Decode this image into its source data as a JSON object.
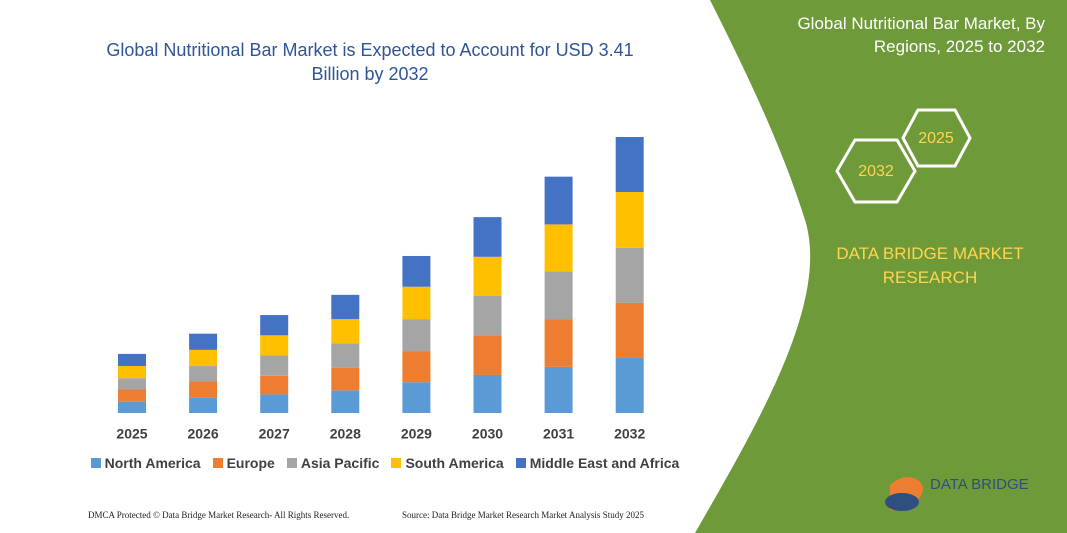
{
  "chart_data": {
    "type": "bar",
    "stacked": true,
    "title": "Global Nutritional Bar Market is Expected to Account for USD 3.41 Billion by 2032",
    "categories": [
      "2025",
      "2026",
      "2027",
      "2028",
      "2029",
      "2030",
      "2031",
      "2032"
    ],
    "series": [
      {
        "name": "North America",
        "color": "#5b9bd5",
        "values": [
          0.14,
          0.19,
          0.23,
          0.28,
          0.38,
          0.47,
          0.57,
          0.68
        ]
      },
      {
        "name": "Europe",
        "color": "#ed7d31",
        "values": [
          0.15,
          0.2,
          0.23,
          0.28,
          0.38,
          0.49,
          0.59,
          0.68
        ]
      },
      {
        "name": "Asia Pacific",
        "color": "#a5a5a5",
        "values": [
          0.14,
          0.19,
          0.25,
          0.3,
          0.4,
          0.49,
          0.59,
          0.68
        ]
      },
      {
        "name": "South America",
        "color": "#ffc000",
        "values": [
          0.15,
          0.2,
          0.25,
          0.3,
          0.4,
          0.48,
          0.58,
          0.69
        ]
      },
      {
        "name": "Middle East and Africa",
        "color": "#4472c4",
        "values": [
          0.15,
          0.2,
          0.25,
          0.3,
          0.38,
          0.49,
          0.59,
          0.68
        ]
      }
    ]
  },
  "panel": {
    "title": "Global Nutritional Bar Market, By Regions, 2025 to 2032",
    "hex_front": "2032",
    "hex_back": "2025",
    "brand": "DATA BRIDGE MARKET RESEARCH"
  },
  "footer": {
    "left": "DMCA Protected © Data Bridge Market Research- All Rights Reserved.",
    "right": "Source: Data Bridge Market Research Market Analysis Study 2025"
  },
  "logo": "DATA BRIDGE"
}
